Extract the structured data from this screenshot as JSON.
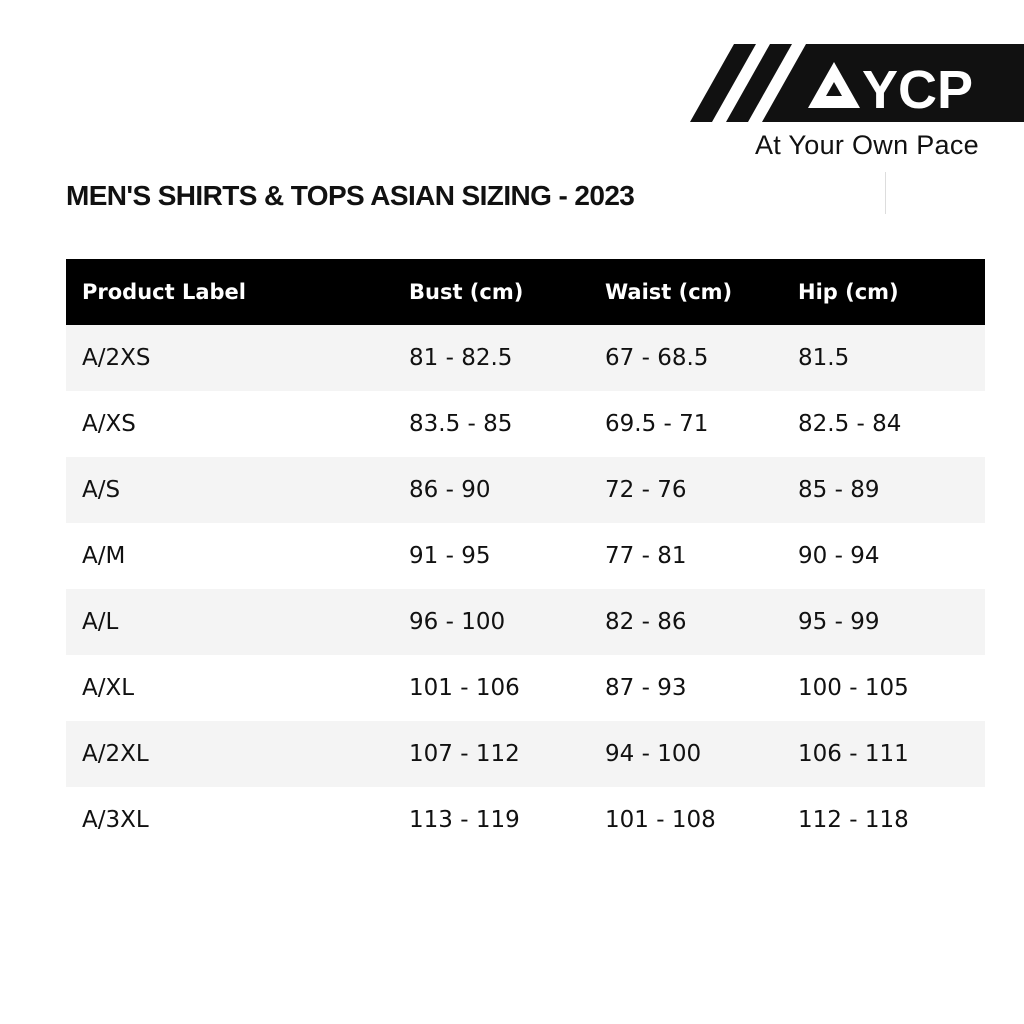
{
  "logo": {
    "text": "AYCP",
    "tagline": "At Your Own Pace"
  },
  "title": "MEN'S SHIRTS & TOPS ASIAN SIZING - 2023",
  "table": {
    "headers": [
      "Product Label",
      "Bust (cm)",
      "Waist (cm)",
      "Hip (cm)"
    ],
    "rows": [
      [
        "A/2XS",
        "81 - 82.5",
        "67 - 68.5",
        "81.5"
      ],
      [
        "A/XS",
        "83.5 - 85",
        "69.5 - 71",
        "82.5 - 84"
      ],
      [
        "A/S",
        "86 - 90",
        "72 - 76",
        "85 - 89"
      ],
      [
        "A/M",
        "91 - 95",
        "77 - 81",
        "90 - 94"
      ],
      [
        "A/L",
        "96 - 100",
        "82 - 86",
        "95 - 99"
      ],
      [
        "A/XL",
        "101 - 106",
        "87 - 93",
        "100 - 105"
      ],
      [
        "A/2XL",
        "107 - 112",
        "94 - 100",
        "106 - 111"
      ],
      [
        "A/3XL",
        "113 - 119",
        "101 - 108",
        "112 - 118"
      ]
    ]
  },
  "colors": {
    "header_bg": "#000000",
    "stripe_bg": "#f4f4f4"
  }
}
